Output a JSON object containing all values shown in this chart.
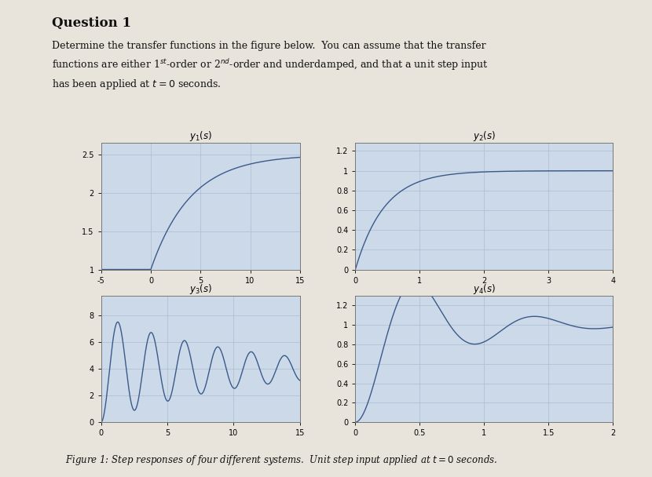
{
  "title": "Question 1",
  "caption": "Figure 1: Step responses of four different systems.  Unit step input applied at $t = 0$ seconds.",
  "plots": [
    {
      "title": "y_1(s)",
      "xlim": [
        -5,
        15
      ],
      "ylim": [
        1.0,
        2.65
      ],
      "xticks": [
        -5,
        0,
        5,
        10,
        15
      ],
      "yticks": [
        1.0,
        1.5,
        2.0,
        2.5
      ],
      "type": "first_order",
      "K": 2.5,
      "tau": 4.0,
      "t_start": 0,
      "x_plot_start": -5,
      "steady_state_before": 1.0
    },
    {
      "title": "y_2(s)",
      "xlim": [
        0,
        4
      ],
      "ylim": [
        0,
        1.28
      ],
      "xticks": [
        0,
        1,
        2,
        3,
        4
      ],
      "yticks": [
        0,
        0.2,
        0.4,
        0.6,
        0.8,
        1.0,
        1.2
      ],
      "type": "first_order",
      "K": 1.0,
      "tau": 0.45,
      "t_start": 0,
      "x_plot_start": 0,
      "steady_state_before": 0
    },
    {
      "title": "y_3(s)",
      "xlim": [
        0,
        15
      ],
      "ylim": [
        0,
        9.5
      ],
      "xticks": [
        0,
        5,
        10,
        15
      ],
      "yticks": [
        0,
        2,
        4,
        6,
        8
      ],
      "type": "second_order",
      "K": 4.0,
      "wn": 2.5,
      "zeta": 0.04,
      "t_start": 0,
      "x_plot_start": 0
    },
    {
      "title": "y_4(s)",
      "xlim": [
        0,
        2
      ],
      "ylim": [
        0,
        1.3
      ],
      "xticks": [
        0,
        0.5,
        1.0,
        1.5,
        2.0
      ],
      "yticks": [
        0,
        0.2,
        0.4,
        0.6,
        0.8,
        1.0,
        1.2
      ],
      "type": "second_order",
      "K": 1.0,
      "wn": 7.0,
      "zeta": 0.25,
      "t_start": 0,
      "x_plot_start": 0
    }
  ],
  "bg_color": "#ccd9e8",
  "line_color": "#3a5a8a",
  "grid_color": "#aabdd4",
  "page_bg": "#e8e4dc",
  "text_color": "#111111"
}
